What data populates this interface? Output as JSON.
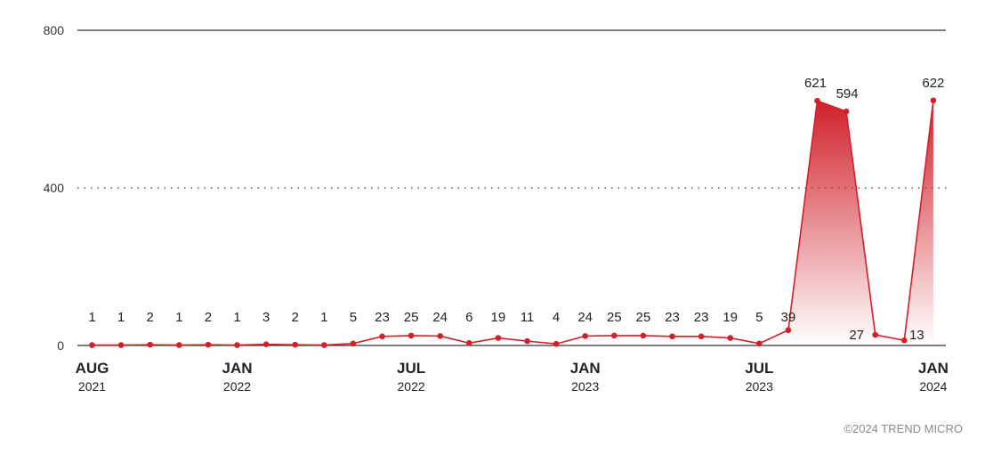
{
  "chart_data": {
    "type": "area",
    "title": "",
    "xlabel": "",
    "ylabel": "",
    "ylim": [
      0,
      800
    ],
    "yticks": [
      "0",
      "400",
      "800"
    ],
    "x": [
      "2021-08",
      "2021-09",
      "2021-10",
      "2021-11",
      "2021-12",
      "2022-01",
      "2022-02",
      "2022-03",
      "2022-04",
      "2022-05",
      "2022-06",
      "2022-07",
      "2022-08",
      "2022-09",
      "2022-10",
      "2022-11",
      "2022-12",
      "2023-01",
      "2023-02",
      "2023-03",
      "2023-04",
      "2023-05",
      "2023-06",
      "2023-07",
      "2023-08",
      "2023-09",
      "2023-10",
      "2023-11",
      "2023-12",
      "2024-01"
    ],
    "series": [
      {
        "values": [
          1,
          1,
          2,
          1,
          2,
          1,
          3,
          2,
          1,
          5,
          23,
          25,
          24,
          6,
          19,
          11,
          4,
          24,
          25,
          25,
          23,
          23,
          19,
          5,
          39,
          621,
          594,
          27,
          13,
          622
        ]
      }
    ],
    "x_tick_labels": [
      {
        "month": "AUG",
        "year": "2021",
        "index": 0
      },
      {
        "month": "JAN",
        "year": "2022",
        "index": 5
      },
      {
        "month": "JUL",
        "year": "2022",
        "index": 11
      },
      {
        "month": "JAN",
        "year": "2023",
        "index": 17
      },
      {
        "month": "JUL",
        "year": "2023",
        "index": 23
      },
      {
        "month": "JAN",
        "year": "2024",
        "index": 29
      }
    ],
    "grid": true,
    "colors": {
      "line": "#d0202a",
      "fill_top": "#d0202a",
      "axis": "#333333",
      "grid": "#555555"
    }
  },
  "credit": "©2024 TREND MICRO"
}
